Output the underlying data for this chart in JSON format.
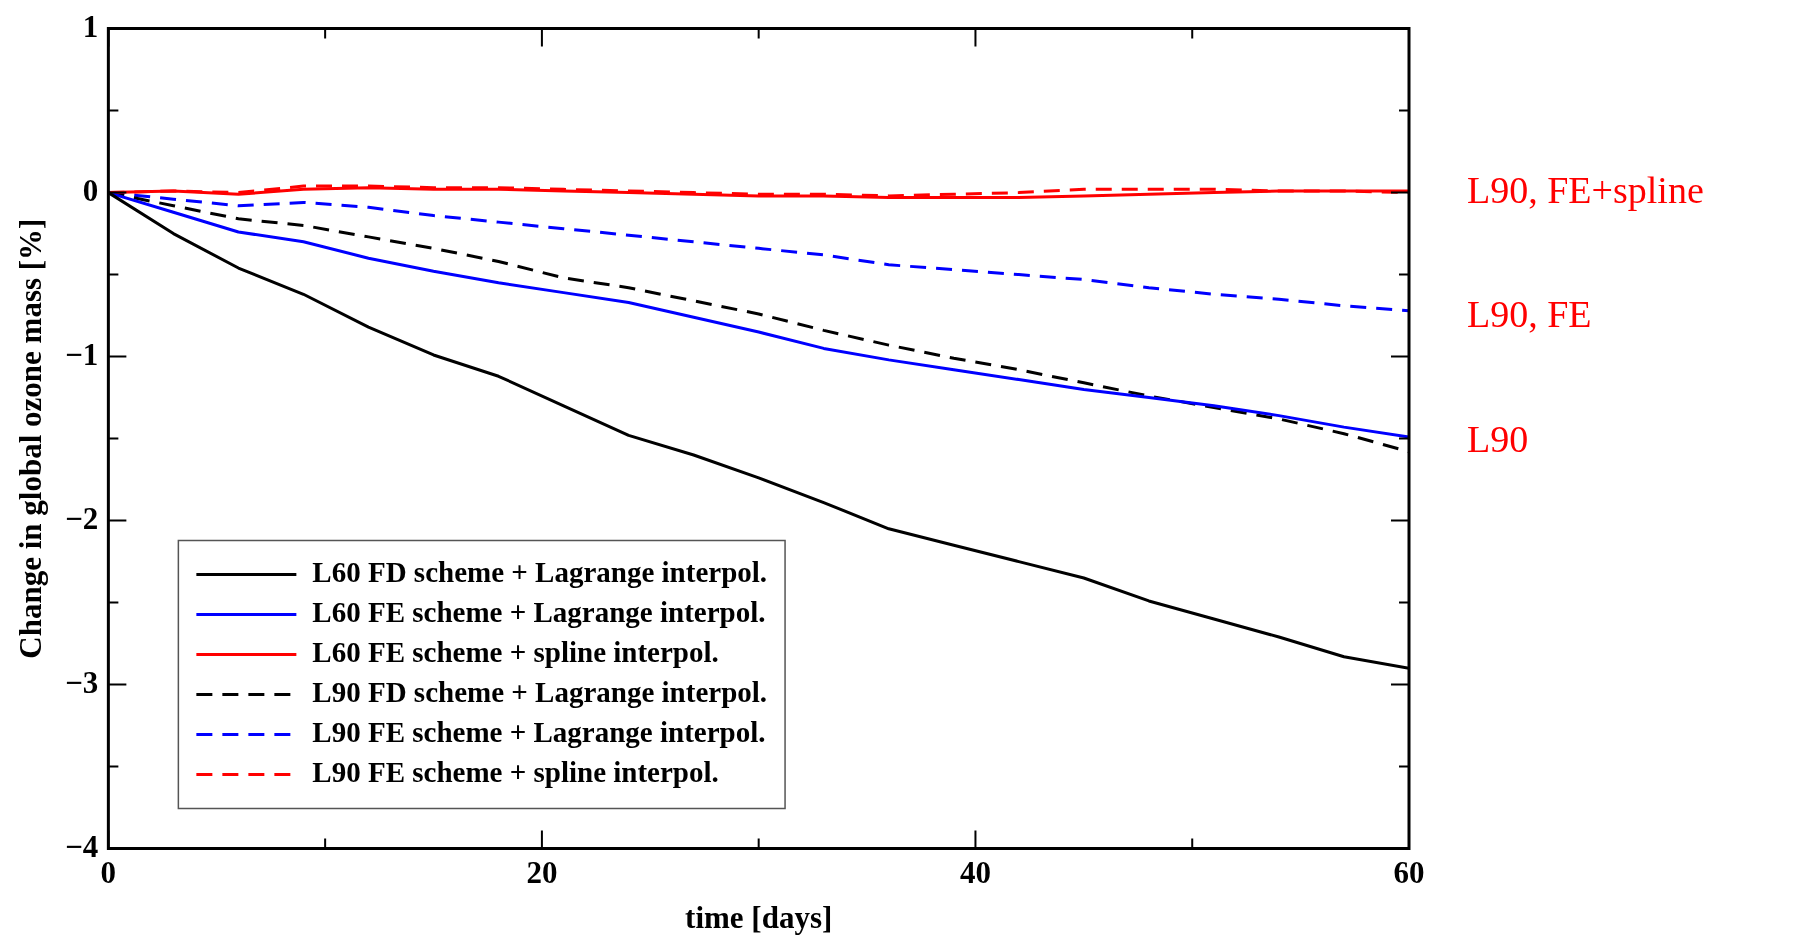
{
  "chart_data": {
    "type": "line",
    "xlabel": "time [days]",
    "ylabel": "Change in global ozone mass [%]",
    "xlim": [
      0,
      60
    ],
    "xticks": [
      0,
      {
        "value": 10,
        "label": null
      },
      20,
      {
        "value": 30,
        "label": null
      },
      40,
      {
        "value": 50,
        "label": null
      },
      60
    ],
    "ylim": [
      -4,
      1
    ],
    "yticks": [
      -4,
      {
        "value": -3.5,
        "label": null
      },
      -3,
      {
        "value": -2.5,
        "label": null
      },
      -2,
      {
        "value": -1.5,
        "label": null
      },
      -1,
      {
        "value": -0.5,
        "label": null
      },
      0,
      {
        "value": 0.5,
        "label": null
      },
      1
    ],
    "x": [
      0,
      3,
      6,
      9,
      12,
      15,
      18,
      21,
      24,
      27,
      30,
      33,
      36,
      39,
      42,
      45,
      48,
      51,
      54,
      57,
      60
    ],
    "legend": "bottom left",
    "marker": "none",
    "series": [
      {
        "name": "L60 FD scheme + Lagrange interpol.",
        "color": "#000000",
        "line_style": "solid",
        "values": [
          0,
          -0.25,
          -0.46,
          -0.62,
          -0.82,
          -0.99,
          -1.12,
          -1.3,
          -1.48,
          -1.6,
          -1.74,
          -1.89,
          -2.05,
          -2.15,
          -2.25,
          -2.35,
          -2.49,
          -2.6,
          -2.71,
          -2.83,
          -2.9
        ]
      },
      {
        "name": "L60 FE scheme + Lagrange interpol.",
        "color": "#0000ff",
        "line_style": "solid",
        "values": [
          0,
          -0.12,
          -0.24,
          -0.3,
          -0.4,
          -0.48,
          -0.55,
          -0.61,
          -0.67,
          -0.76,
          -0.85,
          -0.95,
          -1.02,
          -1.08,
          -1.14,
          -1.2,
          -1.25,
          -1.3,
          -1.36,
          -1.43,
          -1.49
        ]
      },
      {
        "name": "L60 FE scheme + spline interpol.",
        "color": "#ff0000",
        "line_style": "solid",
        "values": [
          0,
          0.01,
          -0.01,
          0.02,
          0.03,
          0.02,
          0.02,
          0.01,
          0,
          -0.01,
          -0.02,
          -0.02,
          -0.03,
          -0.03,
          -0.03,
          -0.02,
          -0.01,
          0,
          0.01,
          0.01,
          0.01
        ]
      },
      {
        "name": "L90 FD scheme + Lagrange interpol.",
        "color": "#000000",
        "line_style": "dashed",
        "values": [
          0,
          -0.08,
          -0.16,
          -0.2,
          -0.27,
          -0.34,
          -0.42,
          -0.52,
          -0.58,
          -0.66,
          -0.74,
          -0.84,
          -0.93,
          -1.01,
          -1.08,
          -1.16,
          -1.24,
          -1.31,
          -1.38,
          -1.47,
          -1.58
        ]
      },
      {
        "name": "L90 FE scheme + Lagrange interpol.",
        "color": "#0000ff",
        "line_style": "dashed",
        "values": [
          0,
          -0.04,
          -0.08,
          -0.06,
          -0.09,
          -0.14,
          -0.18,
          -0.22,
          -0.26,
          -0.3,
          -0.34,
          -0.38,
          -0.44,
          -0.47,
          -0.5,
          -0.53,
          -0.58,
          -0.62,
          -0.65,
          -0.69,
          -0.72
        ]
      },
      {
        "name": "L90 FE scheme + spline interpol.",
        "color": "#ff0000",
        "line_style": "dashed",
        "values": [
          0,
          0.01,
          0,
          0.04,
          0.04,
          0.03,
          0.03,
          0.02,
          0.01,
          0,
          -0.01,
          -0.01,
          -0.02,
          -0.01,
          0,
          0.02,
          0.02,
          0.02,
          0.01,
          0.01,
          0
        ]
      }
    ],
    "annotations": [
      "L90, FE+spline",
      "L90, FE",
      "L90"
    ]
  }
}
